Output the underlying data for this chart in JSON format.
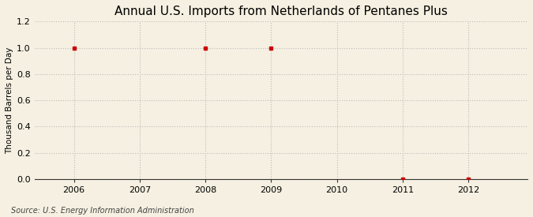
{
  "title": "Annual U.S. Imports from Netherlands of Pentanes Plus",
  "ylabel": "Thousand Barrels per Day",
  "source_text": "Source: U.S. Energy Information Administration",
  "years": [
    2006,
    2008,
    2009,
    2011,
    2012
  ],
  "values": [
    1.0,
    1.0,
    1.0,
    0.003,
    0.003
  ],
  "xlim": [
    2005.4,
    2012.9
  ],
  "ylim": [
    0.0,
    1.2
  ],
  "yticks": [
    0.0,
    0.2,
    0.4,
    0.6,
    0.8,
    1.0,
    1.2
  ],
  "xticks": [
    2006,
    2007,
    2008,
    2009,
    2010,
    2011,
    2012
  ],
  "background_color": "#F5F0E1",
  "plot_bg_color": "#F5F0E1",
  "marker_color": "#CC0000",
  "grid_color": "#BBBBBB",
  "title_fontsize": 11,
  "label_fontsize": 7.5,
  "tick_fontsize": 8,
  "source_fontsize": 7
}
